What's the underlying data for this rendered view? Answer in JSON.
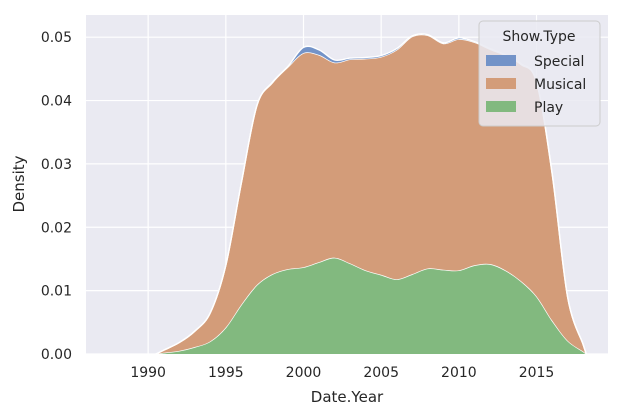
{
  "chart_data": {
    "type": "area",
    "stacked": true,
    "xlabel": "Date.Year",
    "ylabel": "Density",
    "xlim": [
      1986.0,
      2019.6
    ],
    "ylim": [
      0,
      0.0535
    ],
    "xticks": [
      1990,
      1995,
      2000,
      2005,
      2010,
      2015
    ],
    "yticks": [
      0.0,
      0.01,
      0.02,
      0.03,
      0.04,
      0.05
    ],
    "ytick_labels": [
      "0.00",
      "0.01",
      "0.02",
      "0.03",
      "0.04",
      "0.05"
    ],
    "grid": true,
    "legend": {
      "title": "Show.Type",
      "placement": "top-right"
    },
    "x": [
      1990.5,
      1991,
      1992,
      1993,
      1994,
      1995,
      1996,
      1997,
      1998,
      1999,
      2000,
      2001,
      2002,
      2003,
      2004,
      2005,
      2006,
      2007,
      2008,
      2009,
      2010,
      2011,
      2012,
      2013,
      2014,
      2015,
      2016,
      2017,
      2018,
      2018.2
    ],
    "series": [
      {
        "name": "Play",
        "color": "#82b97f",
        "values": [
          0.0,
          0.0002,
          0.0005,
          0.0011,
          0.002,
          0.0042,
          0.0078,
          0.0109,
          0.0126,
          0.0134,
          0.0137,
          0.0145,
          0.0152,
          0.0143,
          0.0132,
          0.0125,
          0.0118,
          0.0126,
          0.0135,
          0.0133,
          0.0132,
          0.014,
          0.0142,
          0.0132,
          0.0115,
          0.0091,
          0.0053,
          0.0021,
          0.0004,
          0.0
        ]
      },
      {
        "name": "Musical",
        "color": "#d39c79",
        "values": [
          0.0,
          0.0004,
          0.0013,
          0.0025,
          0.0045,
          0.0098,
          0.0192,
          0.0283,
          0.0302,
          0.0319,
          0.0338,
          0.0327,
          0.0308,
          0.0322,
          0.0334,
          0.0344,
          0.0362,
          0.0375,
          0.0368,
          0.0357,
          0.0365,
          0.0352,
          0.0339,
          0.0339,
          0.0342,
          0.0338,
          0.0232,
          0.0069,
          0.0011,
          0.0
        ]
      },
      {
        "name": "Special",
        "color": "#7393c8",
        "values": [
          0.0,
          0.0,
          0.0,
          0.0,
          0.0,
          0.0,
          0.0,
          0.0,
          0.0001,
          0.0001,
          0.0009,
          0.0008,
          0.0004,
          0.0002,
          0.0002,
          0.0002,
          0.0002,
          0.0001,
          0.0001,
          0.0001,
          0.0002,
          0.0001,
          0.0001,
          0.0001,
          0.0001,
          0.0001,
          0.0001,
          0.0,
          0.0,
          0.0
        ]
      }
    ]
  }
}
